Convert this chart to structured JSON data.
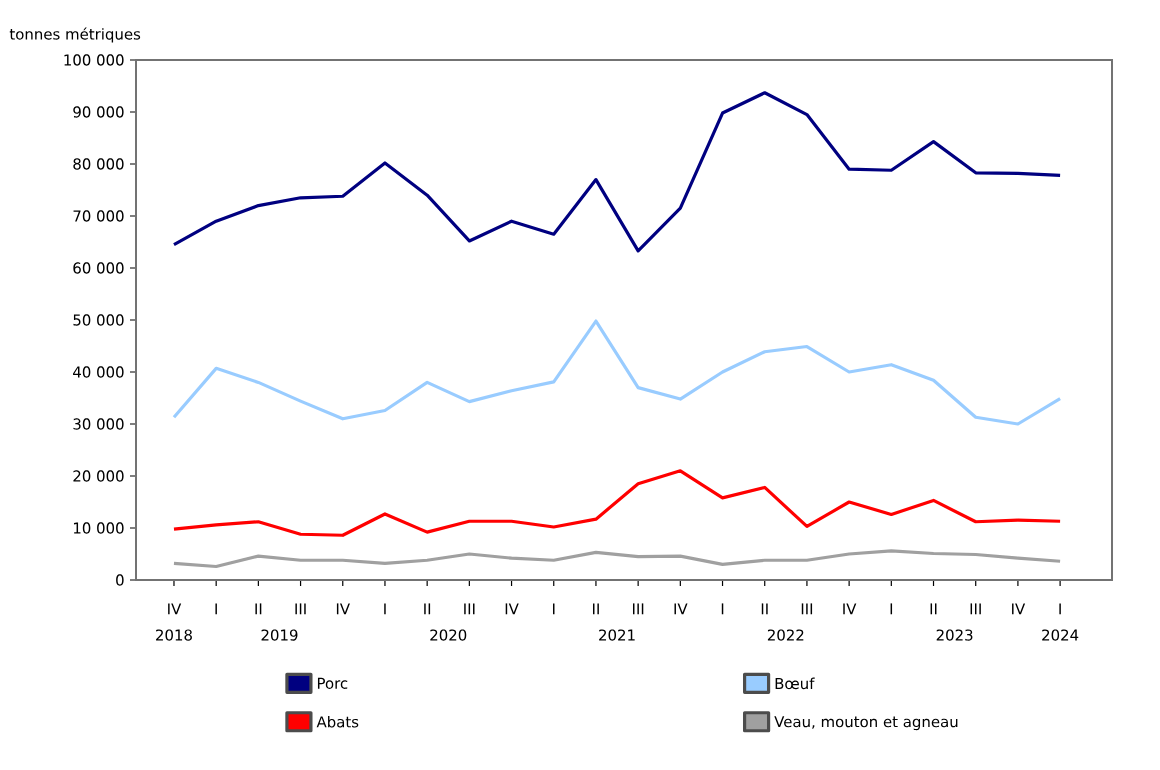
{
  "chart_data": {
    "type": "line",
    "ylabel": "tonnes métriques",
    "categories": [
      "IV",
      "I",
      "II",
      "III",
      "IV",
      "I",
      "II",
      "III",
      "IV",
      "I",
      "II",
      "III",
      "IV",
      "I",
      "II",
      "III",
      "IV",
      "I",
      "II",
      "III",
      "IV",
      "I"
    ],
    "annotations": [
      "2018",
      "2019",
      "2020",
      "2021",
      "2022",
      "2023",
      "2024"
    ],
    "series": [
      {
        "name": "Porc",
        "color": "#000080",
        "values": [
          64500,
          69000,
          72000,
          73500,
          73800,
          80200,
          74000,
          65200,
          69000,
          66500,
          77000,
          63300,
          71500,
          89800,
          93700,
          89500,
          79000,
          78800,
          84300,
          78300,
          78200,
          77800
        ]
      },
      {
        "name": "Bœuf",
        "color": "#99ccff",
        "values": [
          31300,
          40700,
          38000,
          34400,
          31000,
          32600,
          38000,
          34300,
          36400,
          38100,
          49800,
          37000,
          34800,
          40000,
          43900,
          44900,
          40000,
          41400,
          38400,
          31300,
          30000,
          34900
        ]
      },
      {
        "name": "Abats",
        "color": "#ff0000",
        "values": [
          9800,
          10600,
          11200,
          8800,
          8600,
          12700,
          9200,
          11300,
          11300,
          10200,
          11700,
          18500,
          21000,
          15800,
          17800,
          10300,
          15000,
          12600,
          15300,
          11200,
          11500,
          11300
        ]
      },
      {
        "name": "Veau, mouton et agneau",
        "color": "#a0a0a0",
        "values": [
          3200,
          2600,
          4600,
          3800,
          3800,
          3200,
          3800,
          5000,
          4200,
          3800,
          5300,
          4500,
          4600,
          3000,
          3800,
          3800,
          5000,
          5600,
          5100,
          4900,
          4200,
          3600
        ]
      }
    ],
    "ylim": [
      0,
      100000
    ],
    "yticks": [
      {
        "value": 0,
        "label": "0"
      },
      {
        "value": 10000,
        "label": "10 000"
      },
      {
        "value": 20000,
        "label": "20 000"
      },
      {
        "value": 30000,
        "label": "30 000"
      },
      {
        "value": 40000,
        "label": "40 000"
      },
      {
        "value": 50000,
        "label": "50 000"
      },
      {
        "value": 60000,
        "label": "60 000"
      },
      {
        "value": 70000,
        "label": "70 000"
      },
      {
        "value": 80000,
        "label": "80 000"
      },
      {
        "value": 90000,
        "label": "90 000"
      },
      {
        "value": 100000,
        "label": "100 000"
      }
    ],
    "grid": false,
    "legend": "bottom",
    "marker": "none",
    "line_style": "solid"
  }
}
